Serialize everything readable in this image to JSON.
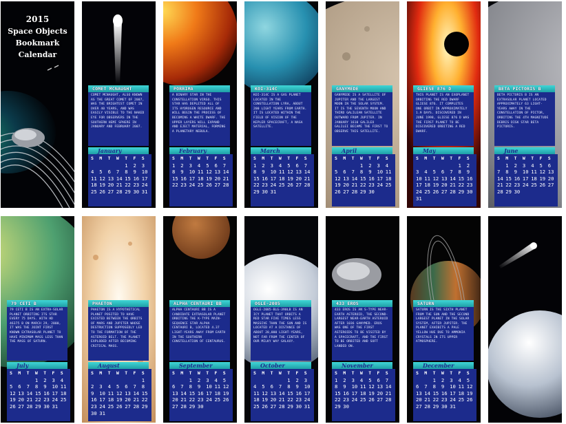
{
  "title": {
    "year": "2015",
    "line1": "Space Objects",
    "line2": "Bookmark",
    "line3": "Calendar"
  },
  "days_of_week": [
    "S",
    "M",
    "T",
    "W",
    "T",
    "F",
    "S"
  ],
  "bookmarks": [
    {
      "object_name": "COMET MCNAUGHT",
      "description": "COMET MCNAUGHT, ALSO KNOWN AS THE GREAT COMET OF 2007, WAS THE BRIGHTEST COMET IN OVER 40 YEARS, AND WAS EASILY VISIBLE TO THE NAKED EYE FOR OBSERVERS IN THE SOUTHERN HEMI SPHERE IN JANUARY AND FEBRUARY 2007.",
      "month": "January",
      "weeks": [
        [
          "",
          "",
          "",
          "",
          "1",
          "2",
          "3"
        ],
        [
          "4",
          "5",
          "6",
          "7",
          "8",
          "9",
          "10"
        ],
        [
          "11",
          "12",
          "13",
          "14",
          "15",
          "16",
          "17"
        ],
        [
          "18",
          "19",
          "20",
          "21",
          "22",
          "23",
          "24"
        ],
        [
          "25",
          "26",
          "27",
          "28",
          "29",
          "30",
          "31"
        ]
      ]
    },
    {
      "object_name": "PORRIMA",
      "description": "A BINARY STAR IN THE CONSTELLATION VIRGO. THIS STAR HAS DEPLETED ALL OF ITS HYDROGEN RESOURCE AND WILL BEGIN THE PROCESS OF BECOMING A WHITE DWARF. THE UPPER LAYERS WILL EXPAND AND EJECT MATERIAL, FORMING A PLANETARY NEBULA.",
      "month": "February",
      "weeks": [
        [
          "1",
          "2",
          "3",
          "4",
          "5",
          "6",
          "7"
        ],
        [
          "8",
          "9",
          "10",
          "11",
          "12",
          "13",
          "14"
        ],
        [
          "15",
          "16",
          "17",
          "18",
          "19",
          "20",
          "21"
        ],
        [
          "22",
          "23",
          "24",
          "25",
          "26",
          "27",
          "28"
        ]
      ]
    },
    {
      "object_name": "KOI-314C",
      "description": "KOI-314C IS A GAS PLANET LOCATED IN THE CONSTELLATION LYRA, ABOUT 200 LIGHT YEARS FROM EARTH. IT IS LOCATED WITHIN THE FIELD OF VISION OF THE KEPLER SPACECRAFT, A NASA SATELLITE.",
      "month": "March",
      "weeks": [
        [
          "1",
          "2",
          "3",
          "4",
          "5",
          "6",
          "7"
        ],
        [
          "8",
          "9",
          "10",
          "11",
          "12",
          "13",
          "14"
        ],
        [
          "15",
          "16",
          "17",
          "18",
          "19",
          "20",
          "21"
        ],
        [
          "22",
          "23",
          "24",
          "25",
          "26",
          "27",
          "28"
        ],
        [
          "29",
          "30",
          "31",
          "",
          "",
          "",
          ""
        ]
      ]
    },
    {
      "object_name": "GANYMEDE",
      "description": "GANYMEDE IS A SATELLITE OF JUPITER AND THE LARGEST MOON IN THE SOLAR SYSTEM. IT IS THE SEVENTH MOON AND THIRD GALILEAN SATELLITE OUTWARD FROM JUPITER. IN JANUARY 1610 GALILEO GALILEI BECAME THE FIRST TO OBSERVE THIS SATELLITE.",
      "month": "April",
      "weeks": [
        [
          "",
          "",
          "",
          "1",
          "2",
          "3",
          "4"
        ],
        [
          "5",
          "6",
          "7",
          "8",
          "9",
          "10",
          "11"
        ],
        [
          "12",
          "13",
          "14",
          "15",
          "16",
          "17",
          "18"
        ],
        [
          "19",
          "20",
          "21",
          "22",
          "23",
          "24",
          "25"
        ],
        [
          "26",
          "27",
          "28",
          "29",
          "30",
          "",
          ""
        ]
      ]
    },
    {
      "object_name": "GLIESE 876 D",
      "description": "THIS PLANET IS AN EXOPLANET ORBITING THE RED DWARF GLIESE 876. IT COMPLETES ONE ORBIT IN APPROXIMATELY 1.9 DAYS. DISCOVERED IN JUNE 1998, GLIESE 876 D WAS THE FIRST PLANET TO BE DISCOVERED ORBITING A RED DWARF.",
      "month": "May",
      "weeks": [
        [
          "",
          "",
          "",
          "",
          "",
          "1",
          "2"
        ],
        [
          "3",
          "4",
          "5",
          "6",
          "7",
          "8",
          "9"
        ],
        [
          "10",
          "11",
          "12",
          "13",
          "14",
          "15",
          "16"
        ],
        [
          "17",
          "18",
          "19",
          "20",
          "21",
          "22",
          "23"
        ],
        [
          "24",
          "25",
          "26",
          "27",
          "28",
          "29",
          "30"
        ],
        [
          "31",
          "",
          "",
          "",
          "",
          "",
          ""
        ]
      ]
    },
    {
      "object_name": "BETA PICTORIS B",
      "description": "BETA PICTORIS B IS AN EXTRASOLAR PLANET LOCATED APPROXIMATELY 63 LIGHT-YEARS AWAY IN THE CONSTELLATION OF PICTOR, ORBITING THE 4TH MAGNITUDE DEBRIS DISK STAR BETA PICTORIS.",
      "month": "June",
      "weeks": [
        [
          "",
          "1",
          "2",
          "3",
          "4",
          "5",
          "6"
        ],
        [
          "7",
          "8",
          "9",
          "10",
          "11",
          "12",
          "13"
        ],
        [
          "14",
          "15",
          "16",
          "17",
          "18",
          "19",
          "20"
        ],
        [
          "21",
          "22",
          "23",
          "24",
          "25",
          "26",
          "27"
        ],
        [
          "28",
          "29",
          "30",
          "",
          "",
          "",
          ""
        ]
      ]
    },
    {
      "object_name": "79 CETI B",
      "description": "79 CETI B IS AN EXTRA-SOLAR PLANET ORBITING ITS STAR EVERY 75 DAYS. WITH HD 46375 B ON MARCH 29, 2000, IT WAS THE JOINT FIRST KNOWN EXTRASOLAR PLANET TO HAVE MINIMUM MASS LESS THAN THE MASS OF SATURN.",
      "month": "July",
      "weeks": [
        [
          "",
          "",
          "",
          "1",
          "2",
          "3",
          "4"
        ],
        [
          "5",
          "6",
          "7",
          "8",
          "9",
          "10",
          "11"
        ],
        [
          "12",
          "13",
          "14",
          "15",
          "16",
          "17",
          "18"
        ],
        [
          "19",
          "20",
          "21",
          "22",
          "23",
          "24",
          "25"
        ],
        [
          "26",
          "27",
          "28",
          "29",
          "30",
          "31",
          ""
        ]
      ]
    },
    {
      "object_name": "PHAETON",
      "description": "PHAETON IS A HYPOTHETICAL PLANET POSITED TO HAVE EXISTED BETWEEN THE ORBITS OF MARS AND JUPITER WHOSE DESTRUCTION SUPPOSEDLY LED TO THE FORMATION OF THE ASTEROID BELT. THE PLANET EXPLODED AFTER BECOMING CRITICAL MASS.",
      "month": "August",
      "weeks": [
        [
          "",
          "",
          "",
          "",
          "",
          "",
          "1"
        ],
        [
          "2",
          "3",
          "4",
          "5",
          "6",
          "7",
          "8"
        ],
        [
          "9",
          "10",
          "11",
          "12",
          "13",
          "14",
          "15"
        ],
        [
          "16",
          "17",
          "18",
          "19",
          "20",
          "21",
          "22"
        ],
        [
          "23",
          "24",
          "25",
          "26",
          "27",
          "28",
          "29"
        ],
        [
          "30",
          "31",
          "",
          "",
          "",
          "",
          ""
        ]
      ]
    },
    {
      "object_name": "ALPHA CENTAURI BB",
      "description": "ALPHA CENTAURI BB IS A CANDIDATE EXTRASOLAR PLANET ORBITING THE K-TYPE MAIN-SEQUENCE STAR ALPHA CENTAURI B, LOCATED 4.37 LIGHT-YEARS AWAY FROM EARTH IN THE SOUTHERN CONSTELLATION OF CENTAURUS.",
      "month": "September",
      "weeks": [
        [
          "",
          "",
          "1",
          "2",
          "3",
          "4",
          "5"
        ],
        [
          "6",
          "7",
          "8",
          "9",
          "10",
          "11",
          "12"
        ],
        [
          "13",
          "14",
          "15",
          "16",
          "17",
          "18",
          "19"
        ],
        [
          "20",
          "21",
          "22",
          "23",
          "24",
          "25",
          "26"
        ],
        [
          "27",
          "28",
          "29",
          "30",
          "",
          "",
          ""
        ]
      ]
    },
    {
      "object_name": "OGLE-2005",
      "description": "OGLE-2005-BLG-390LB IS AN ICY PLANET THAT ORBITS A RED STAR FIVE TIMES LESS MASSIVE THAN THE SUN AND IS LOCATED AT A DISTANCE OF ABOUT 20,000 LIGHT-YEARS, NOT FAR FROM THE CENTER OF OUR MILKY WAY GALAXY.",
      "month": "October",
      "weeks": [
        [
          "",
          "",
          "",
          "",
          "1",
          "2",
          "3"
        ],
        [
          "4",
          "5",
          "6",
          "7",
          "8",
          "9",
          "10"
        ],
        [
          "11",
          "12",
          "13",
          "14",
          "15",
          "16",
          "17"
        ],
        [
          "18",
          "19",
          "20",
          "21",
          "22",
          "23",
          "24"
        ],
        [
          "25",
          "26",
          "27",
          "28",
          "29",
          "30",
          "31"
        ]
      ]
    },
    {
      "object_name": "433 EROS",
      "description": "433 EROS IS AN S-TYPE NEAR-EARTH ASTEROID, THE SECOND-LARGEST NEAR-EARTH ASTEROID AFTER 1036 GANYMED. EROS WAS ONE OF THE FIRST ASTEROIDS TO BE VISITED BY A SPACECRAFT, AND THE FIRST TO BE ORBITED AND SOFT LANDED ON.",
      "month": "November",
      "weeks": [
        [
          "1",
          "2",
          "3",
          "4",
          "5",
          "6",
          "7"
        ],
        [
          "8",
          "9",
          "10",
          "11",
          "12",
          "13",
          "14"
        ],
        [
          "15",
          "16",
          "17",
          "18",
          "19",
          "20",
          "21"
        ],
        [
          "22",
          "23",
          "24",
          "25",
          "26",
          "27",
          "28"
        ],
        [
          "29",
          "30",
          "",
          "",
          "",
          "",
          ""
        ]
      ]
    },
    {
      "object_name": "SATURN",
      "description": "SATURN IS THE SIXTH PLANET FROM THE SUN AND THE SECOND LARGEST PLANET IN THE SOLAR SYSTEM, AFTER JUPITER. THE PLANET EXHIBITS A PALE YELLOW HUE DUE TO AMMONIA CRYSTALS IN ITS UPPER ATMOSPHERE.",
      "month": "December",
      "weeks": [
        [
          "",
          "",
          "1",
          "2",
          "3",
          "4",
          "5"
        ],
        [
          "6",
          "7",
          "8",
          "9",
          "10",
          "11",
          "12"
        ],
        [
          "13",
          "14",
          "15",
          "16",
          "17",
          "18",
          "19"
        ],
        [
          "20",
          "21",
          "22",
          "23",
          "24",
          "25",
          "26"
        ],
        [
          "27",
          "28",
          "29",
          "30",
          "31",
          "",
          ""
        ]
      ]
    }
  ]
}
